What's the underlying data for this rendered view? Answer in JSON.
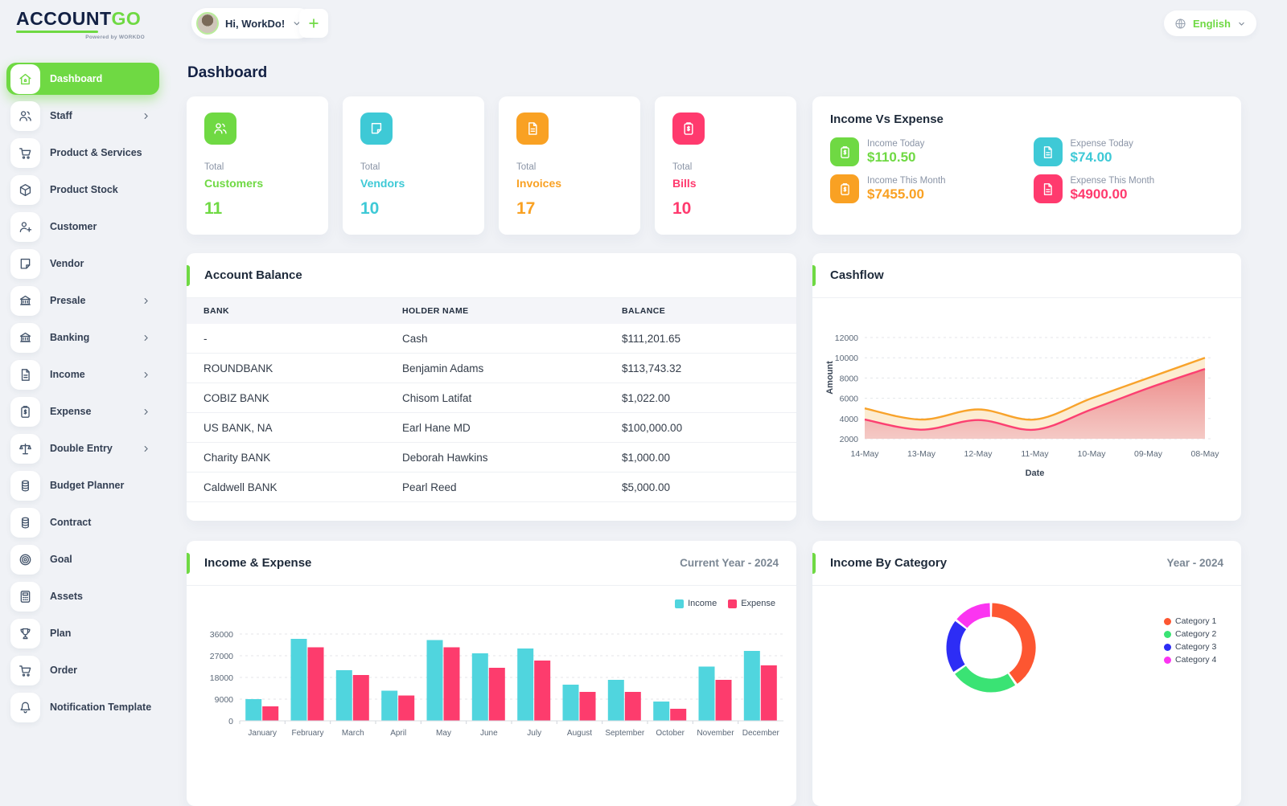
{
  "brand": {
    "primary": "ACCOUNT",
    "secondary": "GO",
    "powered": "Powered by WORKDO"
  },
  "header": {
    "greeting": "Hi, WorkDo!",
    "language": "English"
  },
  "page": {
    "title": "Dashboard"
  },
  "sidebar": {
    "items": [
      {
        "label": "Dashboard",
        "icon": "home-icon",
        "active": true,
        "chevron": false
      },
      {
        "label": "Staff",
        "icon": "users-icon",
        "active": false,
        "chevron": true
      },
      {
        "label": "Product & Services",
        "icon": "cart-icon",
        "active": false,
        "chevron": false
      },
      {
        "label": "Product Stock",
        "icon": "box-icon",
        "active": false,
        "chevron": false
      },
      {
        "label": "Customer",
        "icon": "user-plus-icon",
        "active": false,
        "chevron": false
      },
      {
        "label": "Vendor",
        "icon": "note-icon",
        "active": false,
        "chevron": false
      },
      {
        "label": "Presale",
        "icon": "bank-icon",
        "active": false,
        "chevron": true
      },
      {
        "label": "Banking",
        "icon": "bank-icon",
        "active": false,
        "chevron": true
      },
      {
        "label": "Income",
        "icon": "file-icon",
        "active": false,
        "chevron": true
      },
      {
        "label": "Expense",
        "icon": "clipboard-dollar-icon",
        "active": false,
        "chevron": true
      },
      {
        "label": "Double Entry",
        "icon": "scale-icon",
        "active": false,
        "chevron": true
      },
      {
        "label": "Budget Planner",
        "icon": "coins-icon",
        "active": false,
        "chevron": false
      },
      {
        "label": "Contract",
        "icon": "coins-icon",
        "active": false,
        "chevron": false
      },
      {
        "label": "Goal",
        "icon": "target-icon",
        "active": false,
        "chevron": false
      },
      {
        "label": "Assets",
        "icon": "calculator-icon",
        "active": false,
        "chevron": false
      },
      {
        "label": "Plan",
        "icon": "trophy-icon",
        "active": false,
        "chevron": false
      },
      {
        "label": "Order",
        "icon": "cart-icon",
        "active": false,
        "chevron": false
      },
      {
        "label": "Notification Template",
        "icon": "bell-icon",
        "active": false,
        "chevron": false
      }
    ]
  },
  "stats": [
    {
      "prefix": "Total",
      "label": "Customers",
      "value": "11",
      "color": "#6fd943",
      "icon": "users-icon"
    },
    {
      "prefix": "Total",
      "label": "Vendors",
      "value": "10",
      "color": "#3ec9d6",
      "icon": "note-icon"
    },
    {
      "prefix": "Total",
      "label": "Invoices",
      "value": "17",
      "color": "#f9a123",
      "icon": "file-icon"
    },
    {
      "prefix": "Total",
      "label": "Bills",
      "value": "10",
      "color": "#ff3a6e",
      "icon": "clipboard-dollar-icon"
    }
  ],
  "income_vs_expense": {
    "title": "Income Vs Expense",
    "kpis": [
      {
        "label": "Income Today",
        "value": "$110.50",
        "color": "#6fd943",
        "icon": "clipboard-dollar-icon"
      },
      {
        "label": "Expense Today",
        "value": "$74.00",
        "color": "#3ec9d6",
        "icon": "file-icon"
      },
      {
        "label": "Income This Month",
        "value": "$7455.00",
        "color": "#f9a123",
        "icon": "clipboard-dollar-icon"
      },
      {
        "label": "Expense This Month",
        "value": "$4900.00",
        "color": "#ff3a6e",
        "icon": "file-icon"
      }
    ]
  },
  "account_balance": {
    "title": "Account Balance",
    "columns": [
      "BANK",
      "HOLDER NAME",
      "BALANCE"
    ],
    "rows": [
      [
        "-",
        "Cash",
        "$111,201.65"
      ],
      [
        "ROUNDBANK",
        "Benjamin Adams",
        "$113,743.32"
      ],
      [
        "COBIZ BANK",
        "Chisom Latifat",
        "$1,022.00"
      ],
      [
        "US BANK, NA",
        "Earl Hane MD",
        "$100,000.00"
      ],
      [
        "Charity BANK",
        "Deborah Hawkins",
        "$1,000.00"
      ],
      [
        "Caldwell BANK",
        "Pearl Reed",
        "$5,000.00"
      ]
    ]
  },
  "chart_data": [
    {
      "type": "area",
      "title": "Cashflow",
      "x": [
        "14-May",
        "13-May",
        "12-May",
        "11-May",
        "10-May",
        "09-May",
        "08-May"
      ],
      "series": [
        {
          "name": "upper",
          "color": "#f8a32b",
          "values": [
            5000,
            3900,
            4900,
            3900,
            6000,
            8000,
            10000
          ]
        },
        {
          "name": "lower",
          "color": "#fc4071",
          "values": [
            3900,
            2900,
            3850,
            2900,
            4900,
            7000,
            8900
          ]
        }
      ],
      "xlabel": "Date",
      "ylabel": "Amount",
      "ylim": [
        2000,
        12000
      ],
      "yticks": [
        2000,
        4000,
        6000,
        8000,
        10000,
        12000
      ],
      "grid": true,
      "legend_position": "none"
    },
    {
      "type": "bar",
      "title": "Income & Expense",
      "subtitle": "Current Year - 2024",
      "categories": [
        "January",
        "February",
        "March",
        "April",
        "May",
        "June",
        "July",
        "August",
        "September",
        "October",
        "November",
        "December"
      ],
      "series": [
        {
          "name": "Income",
          "color": "#50d5de",
          "values": [
            9000,
            34000,
            21000,
            12500,
            33500,
            28000,
            30000,
            15000,
            17000,
            8000,
            22500,
            29000
          ]
        },
        {
          "name": "Expense",
          "color": "#fd3c6d",
          "values": [
            6000,
            30500,
            19000,
            10500,
            30500,
            22000,
            25000,
            12000,
            12000,
            5000,
            17000,
            23000
          ]
        }
      ],
      "ylim": [
        0,
        36000
      ],
      "yticks": [
        0,
        9000,
        18000,
        27000,
        36000
      ],
      "grid": true,
      "legend_position": "top-right"
    },
    {
      "type": "pie",
      "donut": true,
      "title": "Income By Category",
      "subtitle": "Year - 2024",
      "labels": [
        "Category 1",
        "Category 2",
        "Category 3",
        "Category 4"
      ],
      "values": [
        41,
        25,
        20,
        14
      ],
      "colors": [
        "#fd5631",
        "#3ae374",
        "#2d2df5",
        "#fb35f1"
      ],
      "legend_position": "right"
    }
  ]
}
